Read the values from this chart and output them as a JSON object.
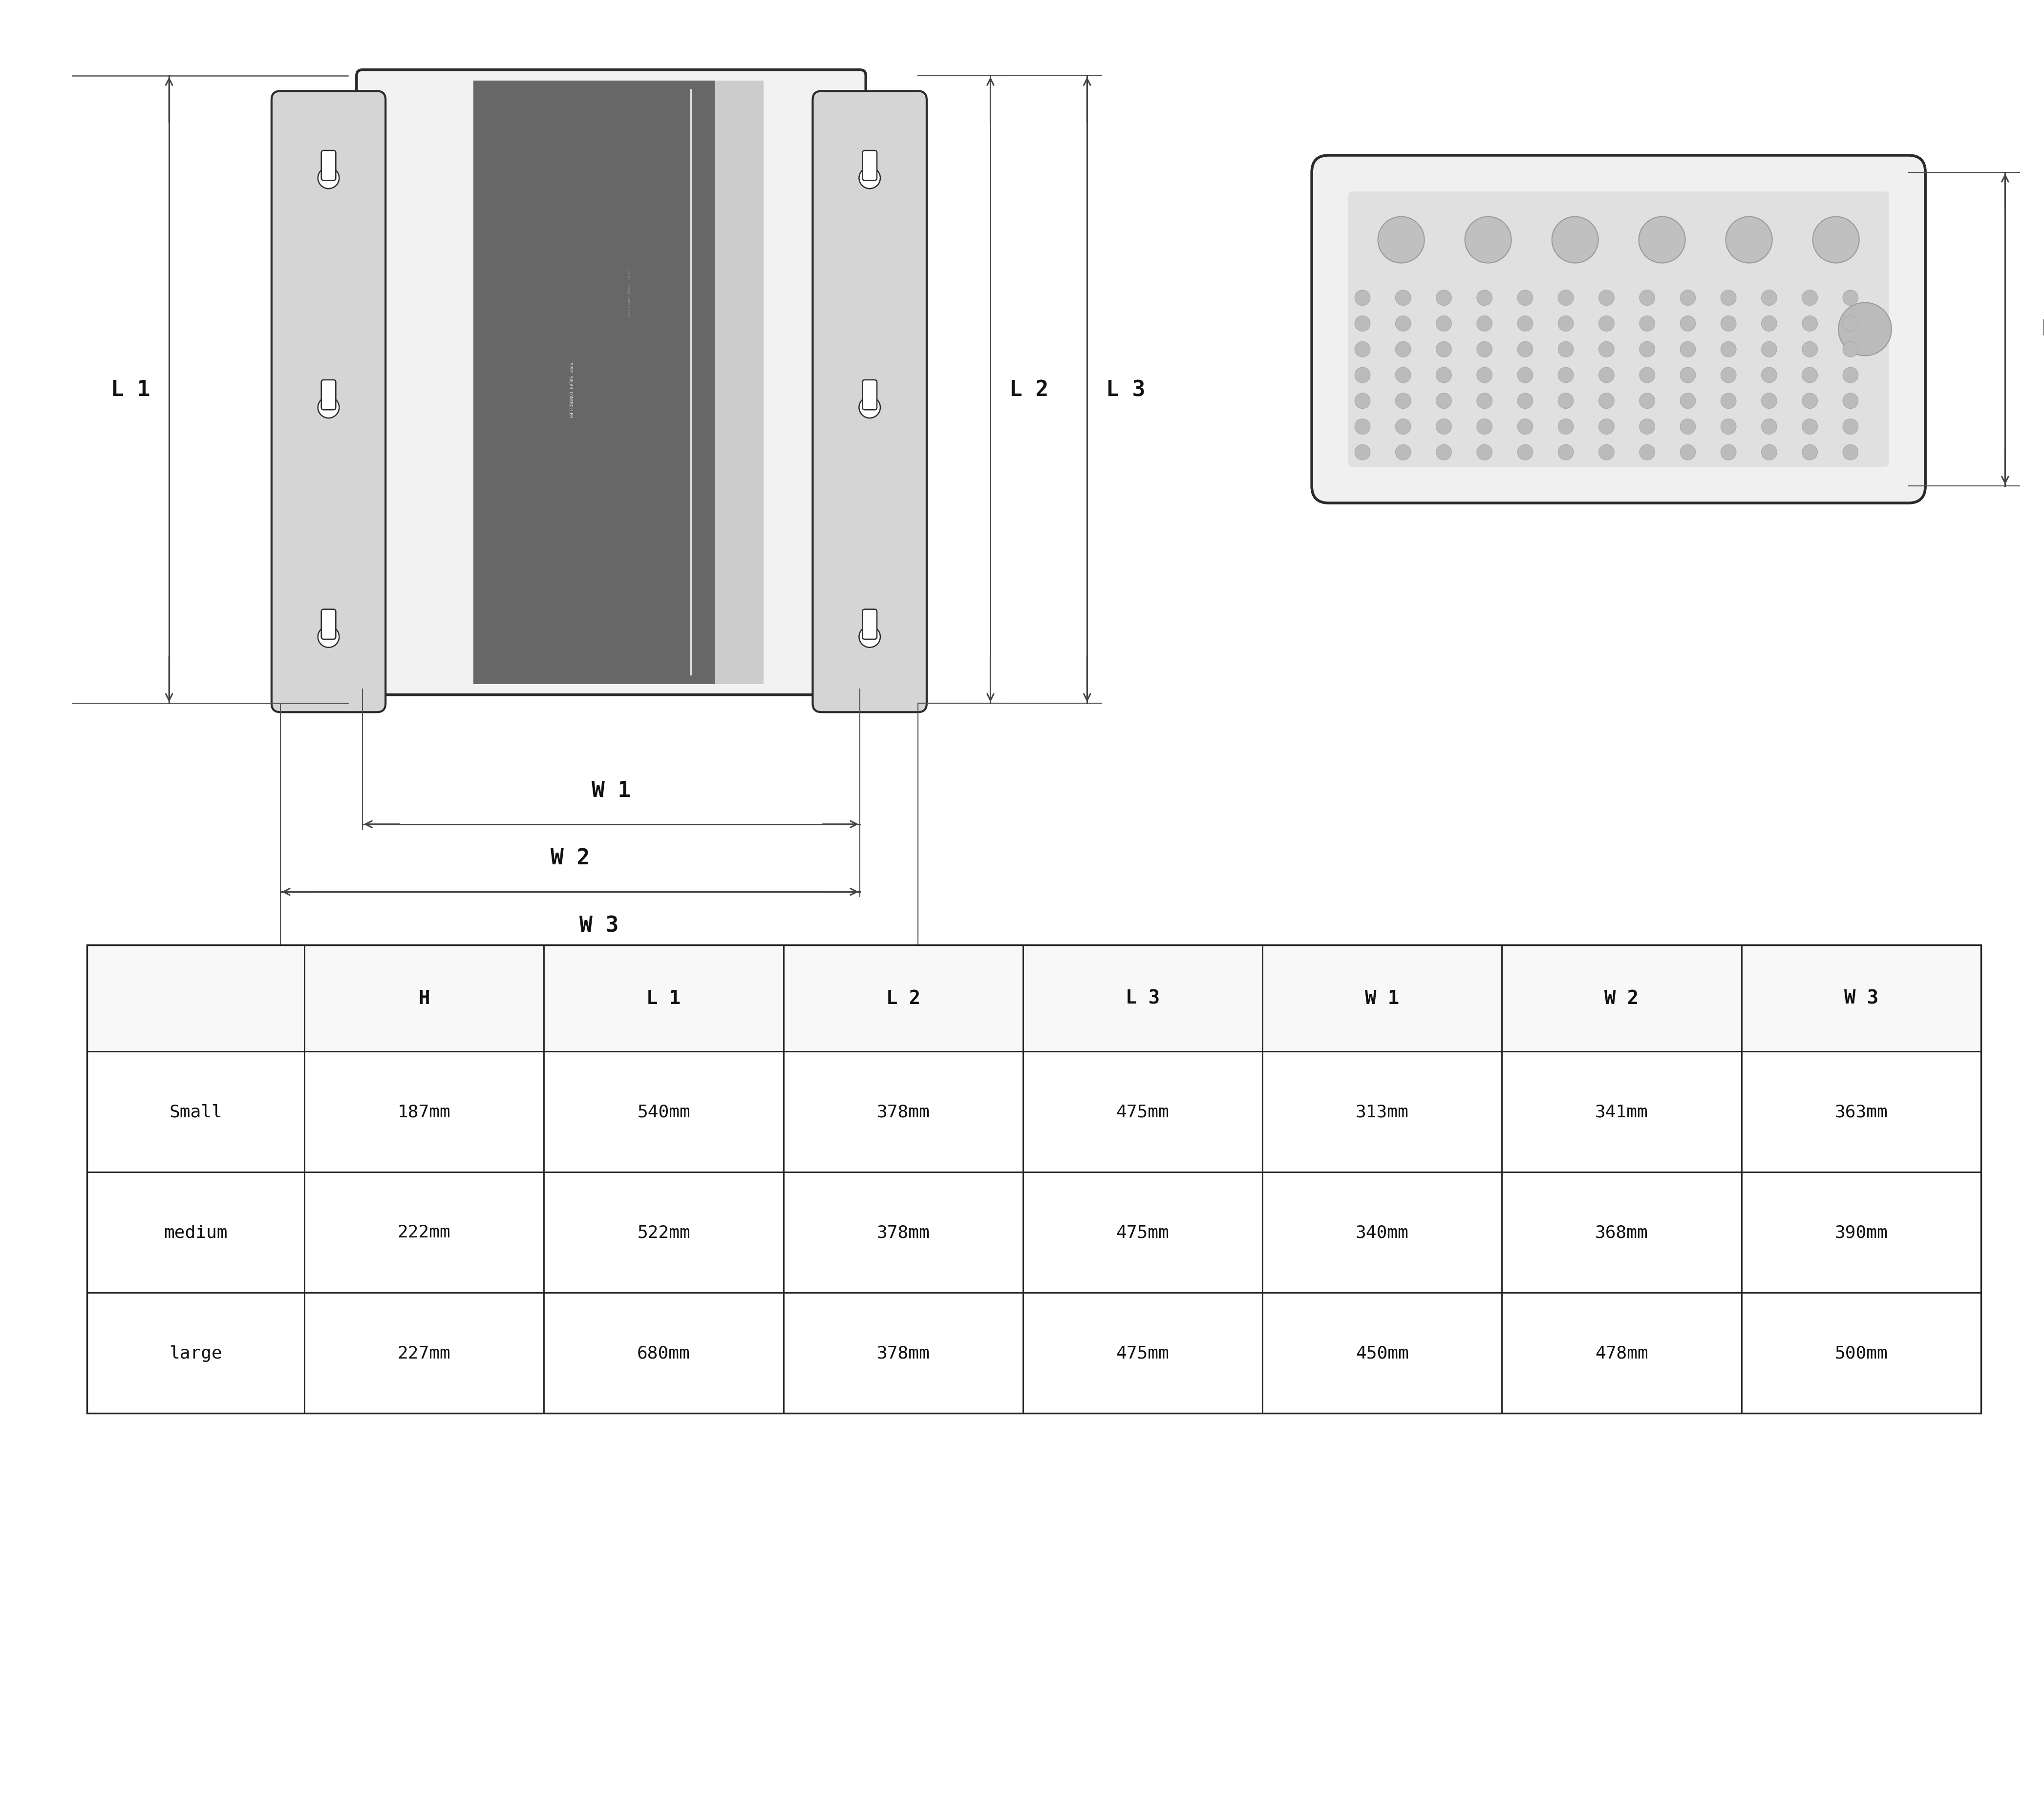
{
  "bg_color": "#ffffff",
  "line_color": "#2a2a2a",
  "device_color": "#e8e8e8",
  "panel_dark": "#636363",
  "panel_light": "#cccccc",
  "dim_color": "#444444",
  "table_headers": [
    "",
    "H",
    "L 1",
    "L 2",
    "L 3",
    "W 1",
    "W 2",
    "W 3"
  ],
  "table_rows": [
    [
      "Small",
      "187mm",
      "540mm",
      "378mm",
      "475mm",
      "313mm",
      "341mm",
      "363mm"
    ],
    [
      "medium",
      "222mm",
      "522mm",
      "378mm",
      "475mm",
      "340mm",
      "368mm",
      "390mm"
    ],
    [
      "large",
      "227mm",
      "680mm",
      "378mm",
      "475mm",
      "450mm",
      "478mm",
      "500mm"
    ]
  ],
  "label_L1": "L 1",
  "label_L2": "L 2",
  "label_L3": "L 3",
  "label_W1": "W 1",
  "label_W2": "W 2",
  "label_W3": "W 3",
  "label_H": "H"
}
